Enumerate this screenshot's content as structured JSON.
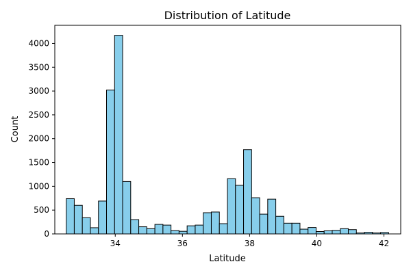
{
  "chart_data": {
    "type": "bar",
    "title": "Distribution of Latitude",
    "xlabel": "Latitude",
    "ylabel": "Count",
    "xlim": [
      32.2,
      42.5
    ],
    "ylim": [
      0,
      4380
    ],
    "x_ticks": [
      34,
      36,
      38,
      40,
      42
    ],
    "y_ticks": [
      0,
      500,
      1000,
      1500,
      2000,
      2500,
      3000,
      3500,
      4000
    ],
    "grid": false,
    "legend": "none",
    "bar_color": "#87ceeb",
    "edge_color": "#000000",
    "bins": {
      "start": 32.54,
      "width": 0.24,
      "values": [
        740,
        600,
        340,
        130,
        690,
        3020,
        4170,
        1100,
        300,
        150,
        110,
        200,
        185,
        70,
        55,
        170,
        185,
        445,
        460,
        215,
        1160,
        1020,
        1770,
        760,
        415,
        730,
        370,
        225,
        225,
        100,
        135,
        50,
        65,
        75,
        110,
        90,
        20,
        35,
        20,
        30
      ]
    }
  }
}
